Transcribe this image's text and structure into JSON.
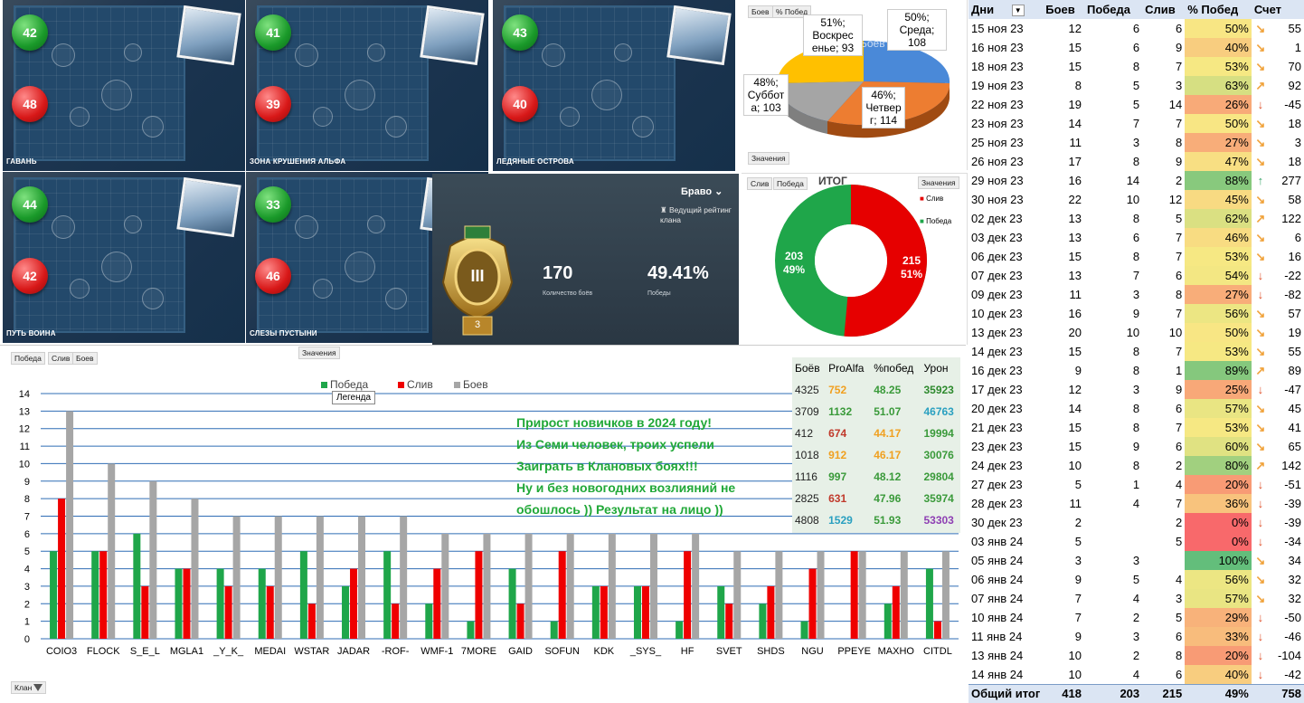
{
  "maps": [
    {
      "name": "ГАВАНЬ",
      "wins": "42",
      "losses": "48"
    },
    {
      "name": "ЗОНА КРУШЕНИЯ АЛЬФА",
      "wins": "41",
      "losses": "39"
    },
    {
      "name": "ЛЕДЯНЫЕ ОСТРОВА",
      "wins": "43",
      "losses": "40"
    },
    {
      "name": "ПУТЬ ВОИНА",
      "wins": "44",
      "losses": "42"
    },
    {
      "name": "СЛЕЗЫ ПУСТЫНИ",
      "wins": "33",
      "losses": "46"
    }
  ],
  "rating": {
    "league": "Браво",
    "league_caret": "⌄",
    "subtitle": "Ведущий рейтинг клана",
    "badge_number": "3",
    "badge_roman": "III",
    "battles_value": "170",
    "battles_label": "Количество боёв",
    "wins_value": "49.41%",
    "wins_label": "Победы"
  },
  "pie": {
    "tabs": [
      "Боев",
      "% Побед"
    ],
    "series_label": "Боев",
    "button": "Значения",
    "labels": [
      {
        "text": "50%; Среда; 108"
      },
      {
        "text": "51%; Воскрес енье; 93"
      },
      {
        "text": "48%; Суббот а; 103"
      },
      {
        "text": "46%; Четвер г; 114"
      }
    ]
  },
  "donut": {
    "tabs": [
      "Слив",
      "Победа"
    ],
    "title": "ИТОГ",
    "button": "Значения",
    "legend": [
      {
        "label": "Слив",
        "color": "#e60000"
      },
      {
        "label": "Победа",
        "color": "#1fa64a"
      }
    ],
    "slices": [
      {
        "label": "Слив",
        "value": 215,
        "pct": "51%"
      },
      {
        "label": "Победа",
        "value": 203,
        "pct": "49%"
      }
    ]
  },
  "bar_panel": {
    "top_button": "Значения",
    "tabs": [
      "Победа",
      "Слив",
      "Боев"
    ],
    "tooltip": "Легенда",
    "filter": "Клан",
    "note": [
      "Прирост новичков в 2024 году!",
      "Из Семи человек, троих успели",
      "Заиграть в Клановых боях!!!",
      "Ну и без новогодних возлияний не",
      "обошлось )) Результат на лицо ))"
    ]
  },
  "chart_data": {
    "type": "bar",
    "categories": [
      "COIO3",
      "FLOCK",
      "S_E_L",
      "MGLA1",
      "_Y_K_",
      "MEDAI",
      "WSTAR",
      "JADAR",
      "-ROF-",
      "WMF-1",
      "7MORE",
      "GAID",
      "SOFUN",
      "KDK",
      "_SYS_",
      "HF",
      "SVET",
      "SHDS",
      "NGU",
      "PPEYE",
      "MAXHO",
      "CITDL"
    ],
    "series": [
      {
        "name": "Победа",
        "color": "#1fa64a",
        "values": [
          5,
          5,
          6,
          4,
          4,
          4,
          5,
          3,
          5,
          2,
          1,
          4,
          1,
          3,
          3,
          1,
          3,
          2,
          1,
          0,
          2,
          4
        ]
      },
      {
        "name": "Слив",
        "color": "#ef0000",
        "values": [
          8,
          5,
          3,
          4,
          3,
          3,
          2,
          4,
          2,
          4,
          5,
          2,
          5,
          3,
          3,
          5,
          2,
          3,
          4,
          5,
          3,
          1
        ]
      },
      {
        "name": "Боев",
        "color": "#a6a6a6",
        "values": [
          13,
          10,
          9,
          8,
          7,
          7,
          7,
          7,
          7,
          6,
          6,
          6,
          6,
          6,
          6,
          6,
          5,
          5,
          5,
          5,
          5,
          5
        ]
      }
    ],
    "ylim": [
      0,
      14
    ],
    "yticks": [
      "0",
      "1",
      "2",
      "3",
      "4",
      "5",
      "6",
      "7",
      "8",
      "9",
      "10",
      "11",
      "12",
      "13",
      "14"
    ],
    "legend_position": "top-center",
    "grid": true
  },
  "player_stats": {
    "headers": [
      "Боёв",
      "ProAlfa",
      "%побед",
      "Урон"
    ],
    "rows": [
      {
        "c": [
          "4325",
          "752",
          "48.25",
          "35923"
        ],
        "col": [
          "#222",
          "#f0a020",
          "#3a9a3a",
          "#2e8a2e"
        ]
      },
      {
        "c": [
          "3709",
          "1132",
          "51.07",
          "46763"
        ],
        "col": [
          "#222",
          "#3a9a3a",
          "#3a9a3a",
          "#2aa0c0"
        ]
      },
      {
        "c": [
          "412",
          "674",
          "44.17",
          "19994"
        ],
        "col": [
          "#222",
          "#c0392b",
          "#f0a020",
          "#3a9a3a"
        ]
      },
      {
        "c": [
          "1018",
          "912",
          "46.17",
          "30076"
        ],
        "col": [
          "#222",
          "#f0a020",
          "#f0a020",
          "#3a9a3a"
        ]
      },
      {
        "c": [
          "1116",
          "997",
          "48.12",
          "29804"
        ],
        "col": [
          "#222",
          "#3a9a3a",
          "#3a9a3a",
          "#3a9a3a"
        ]
      },
      {
        "c": [
          "2825",
          "631",
          "47.96",
          "35974"
        ],
        "col": [
          "#222",
          "#c0392b",
          "#3a9a3a",
          "#3a9a3a"
        ]
      },
      {
        "c": [
          "4808",
          "1529",
          "51.93",
          "53303"
        ],
        "col": [
          "#222",
          "#2aa0c0",
          "#3a9a3a",
          "#8e3fb3"
        ]
      }
    ]
  },
  "days_table": {
    "headers": [
      "Дни",
      "Боев",
      "Победа",
      "Слив",
      "% Побед",
      "Счет"
    ],
    "rows": [
      [
        "15 ноя 23",
        "12",
        "6",
        "6",
        "50%",
        "↘",
        "55"
      ],
      [
        "16 ноя 23",
        "15",
        "6",
        "9",
        "40%",
        "↘",
        "1"
      ],
      [
        "18 ноя 23",
        "15",
        "8",
        "7",
        "53%",
        "↘",
        "70"
      ],
      [
        "19 ноя 23",
        "8",
        "5",
        "3",
        "63%",
        "↗",
        "92"
      ],
      [
        "22 ноя 23",
        "19",
        "5",
        "14",
        "26%",
        "↓",
        "-45"
      ],
      [
        "23 ноя 23",
        "14",
        "7",
        "7",
        "50%",
        "↘",
        "18"
      ],
      [
        "25 ноя 23",
        "11",
        "3",
        "8",
        "27%",
        "↘",
        "3"
      ],
      [
        "26 ноя 23",
        "17",
        "8",
        "9",
        "47%",
        "↘",
        "18"
      ],
      [
        "29 ноя 23",
        "16",
        "14",
        "2",
        "88%",
        "↑",
        "277"
      ],
      [
        "30 ноя 23",
        "22",
        "10",
        "12",
        "45%",
        "↘",
        "58"
      ],
      [
        "02 дек 23",
        "13",
        "8",
        "5",
        "62%",
        "↗",
        "122"
      ],
      [
        "03 дек 23",
        "13",
        "6",
        "7",
        "46%",
        "↘",
        "6"
      ],
      [
        "06 дек 23",
        "15",
        "8",
        "7",
        "53%",
        "↘",
        "16"
      ],
      [
        "07 дек 23",
        "13",
        "7",
        "6",
        "54%",
        "↓",
        "-22"
      ],
      [
        "09 дек 23",
        "11",
        "3",
        "8",
        "27%",
        "↓",
        "-82"
      ],
      [
        "10 дек 23",
        "16",
        "9",
        "7",
        "56%",
        "↘",
        "57"
      ],
      [
        "13 дек 23",
        "20",
        "10",
        "10",
        "50%",
        "↘",
        "19"
      ],
      [
        "14 дек 23",
        "15",
        "8",
        "7",
        "53%",
        "↘",
        "55"
      ],
      [
        "16 дек 23",
        "9",
        "8",
        "1",
        "89%",
        "↗",
        "89"
      ],
      [
        "17 дек 23",
        "12",
        "3",
        "9",
        "25%",
        "↓",
        "-47"
      ],
      [
        "20 дек 23",
        "14",
        "8",
        "6",
        "57%",
        "↘",
        "45"
      ],
      [
        "21 дек 23",
        "15",
        "8",
        "7",
        "53%",
        "↘",
        "41"
      ],
      [
        "23 дек 23",
        "15",
        "9",
        "6",
        "60%",
        "↘",
        "65"
      ],
      [
        "24 дек 23",
        "10",
        "8",
        "2",
        "80%",
        "↗",
        "142"
      ],
      [
        "27 дек 23",
        "5",
        "1",
        "4",
        "20%",
        "↓",
        "-51"
      ],
      [
        "28 дек 23",
        "11",
        "4",
        "7",
        "36%",
        "↓",
        "-39"
      ],
      [
        "30 дек 23",
        "2",
        "",
        "2",
        "0%",
        "↓",
        "-39"
      ],
      [
        "03 янв 24",
        "5",
        "",
        "5",
        "0%",
        "↓",
        "-34"
      ],
      [
        "05 янв 24",
        "3",
        "3",
        "",
        "100%",
        "↘",
        "34"
      ],
      [
        "06 янв 24",
        "9",
        "5",
        "4",
        "56%",
        "↘",
        "32"
      ],
      [
        "07 янв 24",
        "7",
        "4",
        "3",
        "57%",
        "↘",
        "32"
      ],
      [
        "10 янв 24",
        "7",
        "2",
        "5",
        "29%",
        "↓",
        "-50"
      ],
      [
        "11 янв 24",
        "9",
        "3",
        "6",
        "33%",
        "↓",
        "-46"
      ],
      [
        "13 янв 24",
        "10",
        "2",
        "8",
        "20%",
        "↓",
        "-104"
      ],
      [
        "14 янв 24",
        "10",
        "4",
        "6",
        "40%",
        "↓",
        "-42"
      ]
    ],
    "total": [
      "Общий итог",
      "418",
      "203",
      "215",
      "49%",
      "758"
    ],
    "colors": {
      "arrow_up": "#3aa66a",
      "arrow_mid": "#f0a23a",
      "arrow_down": "#e0502a"
    }
  }
}
